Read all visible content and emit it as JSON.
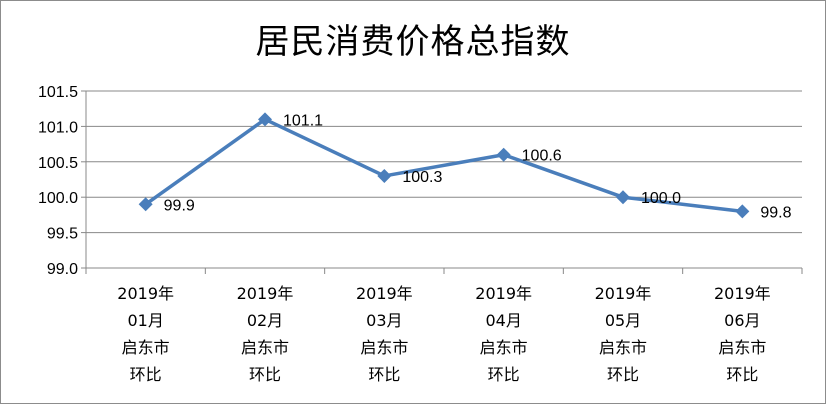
{
  "chart_data": {
    "type": "line",
    "title": "居民消费价格总指数",
    "xlabel": "",
    "ylabel": "",
    "categories": [
      [
        "2019年",
        "01月",
        "启东市",
        "环比"
      ],
      [
        "2019年",
        "02月",
        "启东市",
        "环比"
      ],
      [
        "2019年",
        "03月",
        "启东市",
        "环比"
      ],
      [
        "2019年",
        "04月",
        "启东市",
        "环比"
      ],
      [
        "2019年",
        "05月",
        "启东市",
        "环比"
      ],
      [
        "2019年",
        "06月",
        "启东市",
        "环比"
      ]
    ],
    "series": [
      {
        "values": [
          99.9,
          101.1,
          100.3,
          100.6,
          100.0,
          99.8
        ],
        "data_labels": [
          "99.9",
          "101.1",
          "100.3",
          "100.6",
          "100.0",
          "99.8"
        ],
        "color": "#4a7ebb",
        "marker": "diamond"
      }
    ],
    "ylim": [
      99.0,
      101.5
    ],
    "yticks": [
      99.0,
      99.5,
      100.0,
      100.5,
      101.0,
      101.5
    ],
    "ytick_labels": [
      "99.0",
      "99.5",
      "100.0",
      "100.5",
      "101.0",
      "101.5"
    ],
    "grid": true,
    "legend": "none",
    "gridline_color": "#888888",
    "axis_color": "#888888"
  }
}
